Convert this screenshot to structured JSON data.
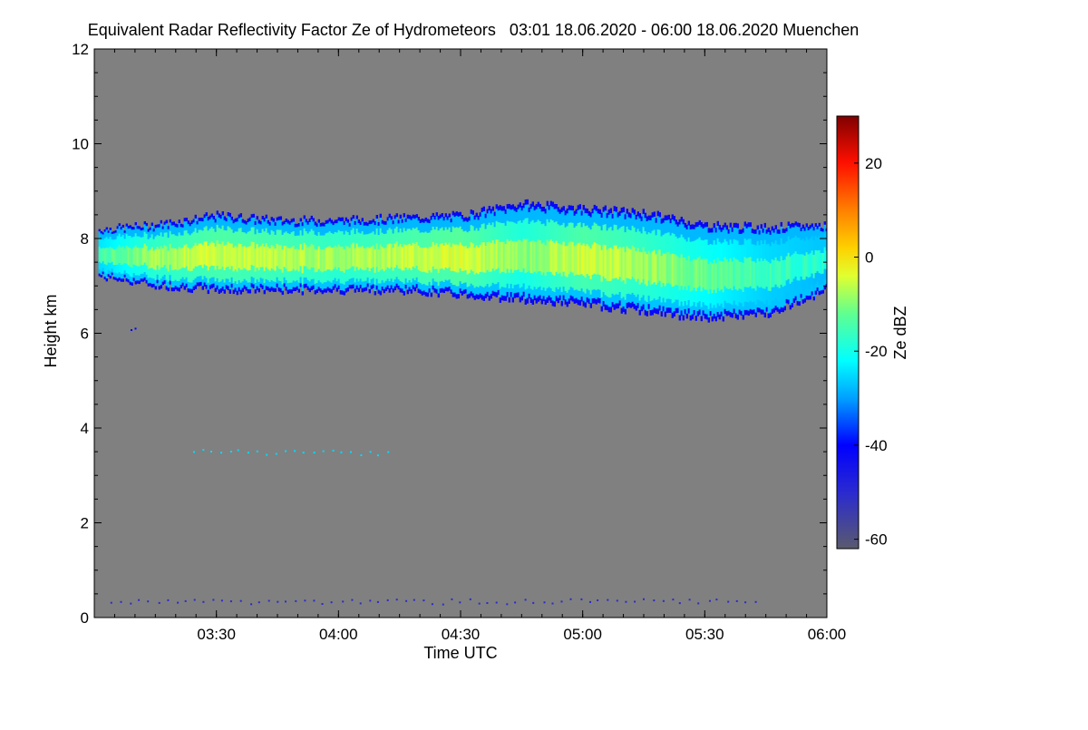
{
  "chart_data": {
    "type": "heatmap",
    "title": "Equivalent Radar Reflectivity Factor Ze of Hydrometeors   03:01 18.06.2020 - 06:00 18.06.2020 Muenchen",
    "xlabel": "Time UTC",
    "ylabel": "Height km",
    "colorbar_label": "Ze dBZ",
    "x_start_hour": 3.017,
    "x_end_hour": 6.0,
    "xlim_hours": [
      3.0,
      6.0
    ],
    "ylim_km": [
      0,
      12
    ],
    "colorbar_range_dbz": [
      -62,
      30
    ],
    "no_data_color": "#808080",
    "x_tick_labels": [
      {
        "hour": 3.5,
        "label": "03:30"
      },
      {
        "hour": 4.0,
        "label": "04:00"
      },
      {
        "hour": 4.5,
        "label": "04:30"
      },
      {
        "hour": 5.0,
        "label": "05:00"
      },
      {
        "hour": 5.5,
        "label": "05:30"
      },
      {
        "hour": 6.0,
        "label": "06:00"
      }
    ],
    "y_ticks_km": [
      0,
      2,
      4,
      6,
      8,
      10,
      12
    ],
    "y_tick_labels": [
      "0",
      "2",
      "4",
      "6",
      "8",
      "10",
      "12"
    ],
    "colorbar_ticks_dbz": [
      -60,
      -40,
      -20,
      0,
      20
    ],
    "colorbar_tick_labels": [
      "-60",
      "-40",
      "-20",
      "0",
      "20"
    ],
    "colorbar_stops": [
      {
        "dbz": -62,
        "color": "#5a5a6e"
      },
      {
        "dbz": -50,
        "color": "#2a2ad0"
      },
      {
        "dbz": -40,
        "color": "#0000ff"
      },
      {
        "dbz": -30,
        "color": "#00a0ff"
      },
      {
        "dbz": -22,
        "color": "#00ffff"
      },
      {
        "dbz": -12,
        "color": "#60ff90"
      },
      {
        "dbz": -4,
        "color": "#e0ff30"
      },
      {
        "dbz": 2,
        "color": "#ffd000"
      },
      {
        "dbz": 10,
        "color": "#ff8000"
      },
      {
        "dbz": 20,
        "color": "#ff1000"
      },
      {
        "dbz": 30,
        "color": "#800000"
      }
    ],
    "cloud_layer": {
      "profile_hours": [
        3.02,
        3.25,
        3.5,
        3.75,
        4.0,
        4.25,
        4.5,
        4.75,
        5.0,
        5.25,
        5.5,
        5.75,
        6.0
      ],
      "top_km": [
        8.2,
        8.3,
        8.5,
        8.4,
        8.4,
        8.45,
        8.5,
        8.75,
        8.65,
        8.55,
        8.3,
        8.25,
        8.3
      ],
      "base_km": [
        7.2,
        7.0,
        6.9,
        6.9,
        6.9,
        6.9,
        6.8,
        6.7,
        6.6,
        6.45,
        6.3,
        6.4,
        6.9
      ],
      "core_ze_dbz": [
        -15,
        -8,
        -5,
        -6,
        -8,
        -6,
        -4,
        -10,
        -5,
        -8,
        -12,
        -16,
        -18
      ]
    },
    "isolated_echoes": [
      {
        "hour_start": 3.4,
        "hour_end": 4.2,
        "height_km": 3.5,
        "ze_dbz": -25
      },
      {
        "hour_start": 3.15,
        "hour_end": 3.17,
        "height_km": 6.1,
        "ze_dbz": -40
      },
      {
        "hour_start": 3.07,
        "hour_end": 5.7,
        "height_km": 0.35,
        "ze_dbz": -50
      }
    ]
  }
}
